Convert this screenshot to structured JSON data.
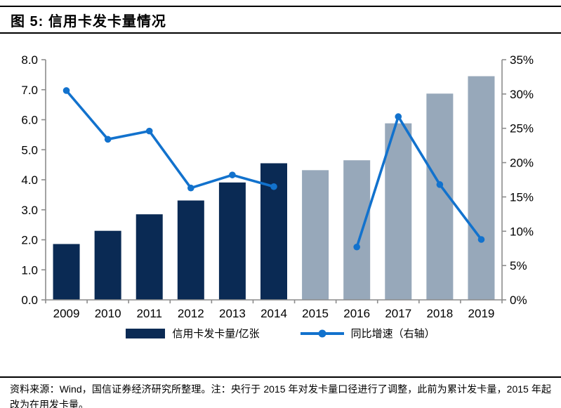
{
  "header": {
    "title": "图 5: 信用卡发卡量情况"
  },
  "footer": {
    "text": "资料来源：Wind，国信证券经济研究所整理。注：央行于 2015 年对发卡量口径进行了调整，此前为累计发卡量，2015 年起改为在用发卡量。"
  },
  "colors": {
    "bar_primary": "#0a2a54",
    "bar_secondary": "#97a8ba",
    "line": "#1272cd",
    "axis": "#8c8c8c",
    "text": "#000000"
  },
  "chart_data": {
    "type": "bar",
    "subtype": "combo-bar-line-dual-axis",
    "categories": [
      "2009",
      "2010",
      "2011",
      "2012",
      "2013",
      "2014",
      "2015",
      "2016",
      "2017",
      "2018",
      "2019"
    ],
    "series": [
      {
        "name": "信用卡发卡量/亿张",
        "type": "bar",
        "axis": "left",
        "values": [
          1.86,
          2.3,
          2.85,
          3.31,
          3.91,
          4.55,
          4.32,
          4.65,
          5.88,
          6.87,
          7.45
        ],
        "color_split_index": 6,
        "note": "2009-2014 bars dark navy, 2015-2019 bars gray"
      },
      {
        "name": "同比增速（右轴）",
        "type": "line",
        "axis": "right",
        "values": [
          30.5,
          23.4,
          24.6,
          16.3,
          18.2,
          16.5,
          null,
          7.7,
          26.7,
          16.8,
          8.8
        ],
        "note": "percent; no data point for 2015 (line break)"
      }
    ],
    "left_axis": {
      "min": 0,
      "max": 8,
      "tick_labels": [
        "0.0",
        "1.0",
        "2.0",
        "3.0",
        "4.0",
        "5.0",
        "6.0",
        "7.0",
        "8.0"
      ]
    },
    "right_axis": {
      "min": 0,
      "max": 35,
      "tick_labels": [
        "0%",
        "5%",
        "10%",
        "15%",
        "20%",
        "25%",
        "30%",
        "35%"
      ]
    },
    "title": "信用卡发卡量情况",
    "xlabel": "",
    "ylabel": "",
    "grid": false,
    "legend_position": "bottom"
  }
}
